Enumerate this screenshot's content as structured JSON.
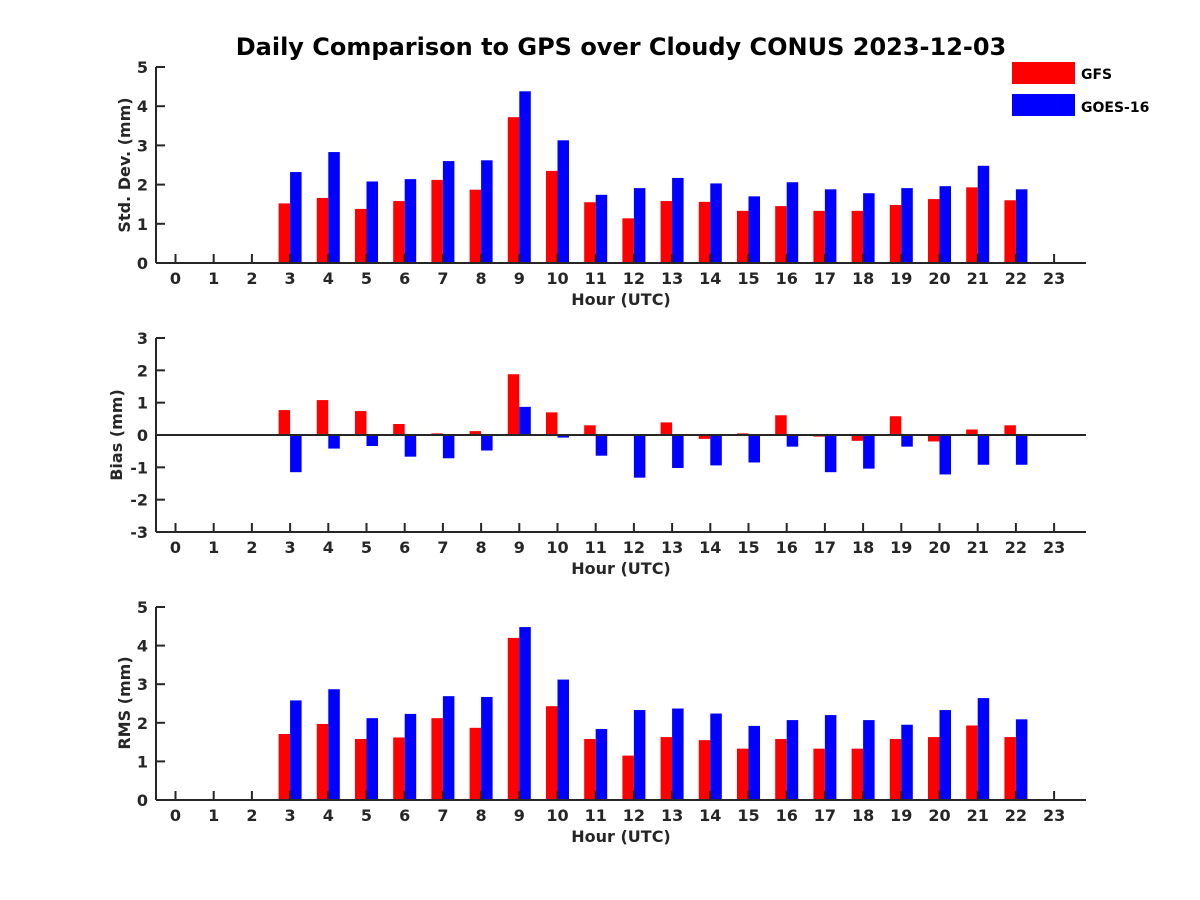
{
  "title": "Daily Comparison to GPS over Cloudy CONUS 2023-12-03",
  "legend": [
    {
      "name": "GFS",
      "color": "#ff0000"
    },
    {
      "name": "GOES-16",
      "color": "#0000ff"
    }
  ],
  "chart_data": [
    {
      "type": "bar",
      "ylabel": "Std. Dev. (mm)",
      "xlabel": "Hour (UTC)",
      "ylim": [
        0,
        5
      ],
      "yticks": [
        0,
        1,
        2,
        3,
        4,
        5
      ],
      "categories": [
        "0",
        "1",
        "2",
        "3",
        "4",
        "5",
        "6",
        "7",
        "8",
        "9",
        "10",
        "11",
        "12",
        "13",
        "14",
        "15",
        "16",
        "17",
        "18",
        "19",
        "20",
        "21",
        "22",
        "23"
      ],
      "series": [
        {
          "name": "GFS",
          "color": "#ff0000",
          "values": [
            null,
            null,
            null,
            1.52,
            1.66,
            1.38,
            1.58,
            2.12,
            1.87,
            3.72,
            2.35,
            1.55,
            1.14,
            1.58,
            1.56,
            1.33,
            1.45,
            1.33,
            1.33,
            1.48,
            1.63,
            1.93,
            1.6,
            null
          ]
        },
        {
          "name": "GOES-16",
          "color": "#0000ff",
          "values": [
            null,
            null,
            null,
            2.32,
            2.83,
            2.08,
            2.14,
            2.6,
            2.62,
            4.38,
            3.13,
            1.74,
            1.91,
            2.17,
            2.03,
            1.7,
            2.06,
            1.88,
            1.78,
            1.91,
            1.96,
            2.48,
            1.88,
            null
          ]
        }
      ]
    },
    {
      "type": "bar",
      "ylabel": "Bias (mm)",
      "xlabel": "Hour (UTC)",
      "ylim": [
        -3,
        3
      ],
      "yticks": [
        -3,
        -2,
        -1,
        0,
        1,
        2,
        3
      ],
      "categories": [
        "0",
        "1",
        "2",
        "3",
        "4",
        "5",
        "6",
        "7",
        "8",
        "9",
        "10",
        "11",
        "12",
        "13",
        "14",
        "15",
        "16",
        "17",
        "18",
        "19",
        "20",
        "21",
        "22",
        "23"
      ],
      "series": [
        {
          "name": "GFS",
          "color": "#ff0000",
          "values": [
            null,
            null,
            null,
            0.77,
            1.08,
            0.74,
            0.34,
            0.05,
            0.12,
            1.88,
            0.7,
            0.3,
            0.0,
            0.39,
            -0.12,
            0.05,
            0.61,
            -0.05,
            -0.18,
            0.58,
            -0.2,
            0.17,
            0.3,
            null
          ]
        },
        {
          "name": "GOES-16",
          "color": "#0000ff",
          "values": [
            null,
            null,
            null,
            -1.15,
            -0.42,
            -0.34,
            -0.67,
            -0.72,
            -0.48,
            0.87,
            -0.08,
            -0.64,
            -1.32,
            -1.02,
            -0.94,
            -0.85,
            -0.36,
            -1.15,
            -1.04,
            -0.36,
            -1.22,
            -0.92,
            -0.92,
            null
          ]
        }
      ]
    },
    {
      "type": "bar",
      "ylabel": "RMS (mm)",
      "xlabel": "Hour (UTC)",
      "ylim": [
        0,
        5
      ],
      "yticks": [
        0,
        1,
        2,
        3,
        4,
        5
      ],
      "categories": [
        "0",
        "1",
        "2",
        "3",
        "4",
        "5",
        "6",
        "7",
        "8",
        "9",
        "10",
        "11",
        "12",
        "13",
        "14",
        "15",
        "16",
        "17",
        "18",
        "19",
        "20",
        "21",
        "22",
        "23"
      ],
      "series": [
        {
          "name": "GFS",
          "color": "#ff0000",
          "values": [
            null,
            null,
            null,
            1.71,
            1.97,
            1.58,
            1.62,
            2.12,
            1.87,
            4.2,
            2.43,
            1.58,
            1.15,
            1.63,
            1.55,
            1.33,
            1.58,
            1.33,
            1.33,
            1.58,
            1.63,
            1.93,
            1.63,
            null
          ]
        },
        {
          "name": "GOES-16",
          "color": "#0000ff",
          "values": [
            null,
            null,
            null,
            2.58,
            2.87,
            2.12,
            2.23,
            2.69,
            2.67,
            4.48,
            3.12,
            1.84,
            2.33,
            2.37,
            2.24,
            1.92,
            2.07,
            2.2,
            2.07,
            1.95,
            2.33,
            2.64,
            2.09,
            null
          ]
        }
      ]
    }
  ]
}
